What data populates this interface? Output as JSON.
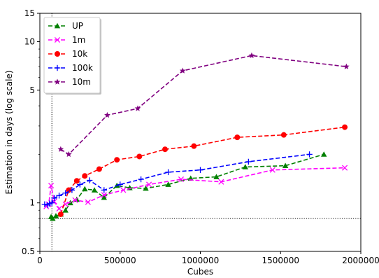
{
  "chart_data": {
    "type": "line",
    "xlabel": "Cubes",
    "ylabel": "Estimation in days (log scale)",
    "x_range": [
      0,
      2000000
    ],
    "y_range": [
      0.5,
      15
    ],
    "y_scale": "log",
    "x_ticks": [
      0,
      500000,
      1000000,
      1500000,
      2000000
    ],
    "y_ticks": [
      0.5,
      1,
      5,
      10,
      15
    ],
    "x_tick_labels": [
      "0",
      "500000",
      "1000000",
      "1500000",
      "2000000"
    ],
    "y_tick_labels": [
      "0.5",
      "1",
      "5",
      "10",
      "15"
    ],
    "grid": false,
    "legend_position": "top-left",
    "reference_lines": [
      {
        "orientation": "vertical",
        "value": 75000
      },
      {
        "orientation": "horizontal",
        "value": 0.8
      }
    ],
    "series": [
      {
        "name": "UP",
        "color": "#008000",
        "marker": "triangle",
        "x": [
          70000,
          80000,
          100000,
          130000,
          160000,
          190000,
          230000,
          280000,
          340000,
          400000,
          480000,
          560000,
          660000,
          800000,
          940000,
          1100000,
          1280000,
          1530000,
          1770000
        ],
        "y": [
          0.82,
          0.8,
          0.83,
          0.85,
          0.9,
          1.0,
          1.05,
          1.22,
          1.2,
          1.08,
          1.28,
          1.24,
          1.23,
          1.3,
          1.42,
          1.45,
          1.67,
          1.7,
          2.0
        ]
      },
      {
        "name": "1m",
        "color": "#ff00ff",
        "marker": "x",
        "x": [
          40000,
          55000,
          70000,
          90000,
          120000,
          160000,
          220000,
          300000,
          400000,
          520000,
          680000,
          880000,
          1130000,
          1450000,
          1900000
        ],
        "y": [
          0.95,
          0.98,
          1.28,
          1.02,
          0.92,
          0.98,
          1.04,
          1.01,
          1.12,
          1.2,
          1.3,
          1.4,
          1.35,
          1.6,
          1.65
        ]
      },
      {
        "name": "10k",
        "color": "#ff0000",
        "marker": "circle",
        "x": [
          130000,
          180000,
          230000,
          280000,
          370000,
          480000,
          620000,
          780000,
          960000,
          1230000,
          1520000,
          1900000
        ],
        "y": [
          0.85,
          1.2,
          1.37,
          1.47,
          1.62,
          1.85,
          1.94,
          2.15,
          2.25,
          2.55,
          2.64,
          2.95
        ]
      },
      {
        "name": "100k",
        "color": "#0000ff",
        "marker": "plus",
        "x": [
          30000,
          50000,
          60000,
          75000,
          90000,
          120000,
          160000,
          200000,
          250000,
          310000,
          400000,
          500000,
          630000,
          800000,
          1000000,
          1300000,
          1680000
        ],
        "y": [
          0.98,
          0.97,
          0.99,
          1.0,
          1.07,
          1.11,
          1.15,
          1.2,
          1.3,
          1.38,
          1.2,
          1.3,
          1.4,
          1.55,
          1.6,
          1.8,
          2.0
        ]
      },
      {
        "name": "10m",
        "color": "#800080",
        "marker": "star",
        "x": [
          130000,
          180000,
          420000,
          610000,
          890000,
          1320000,
          1910000
        ],
        "y": [
          2.15,
          2.0,
          3.5,
          3.85,
          6.6,
          8.2,
          7.0
        ]
      }
    ]
  }
}
